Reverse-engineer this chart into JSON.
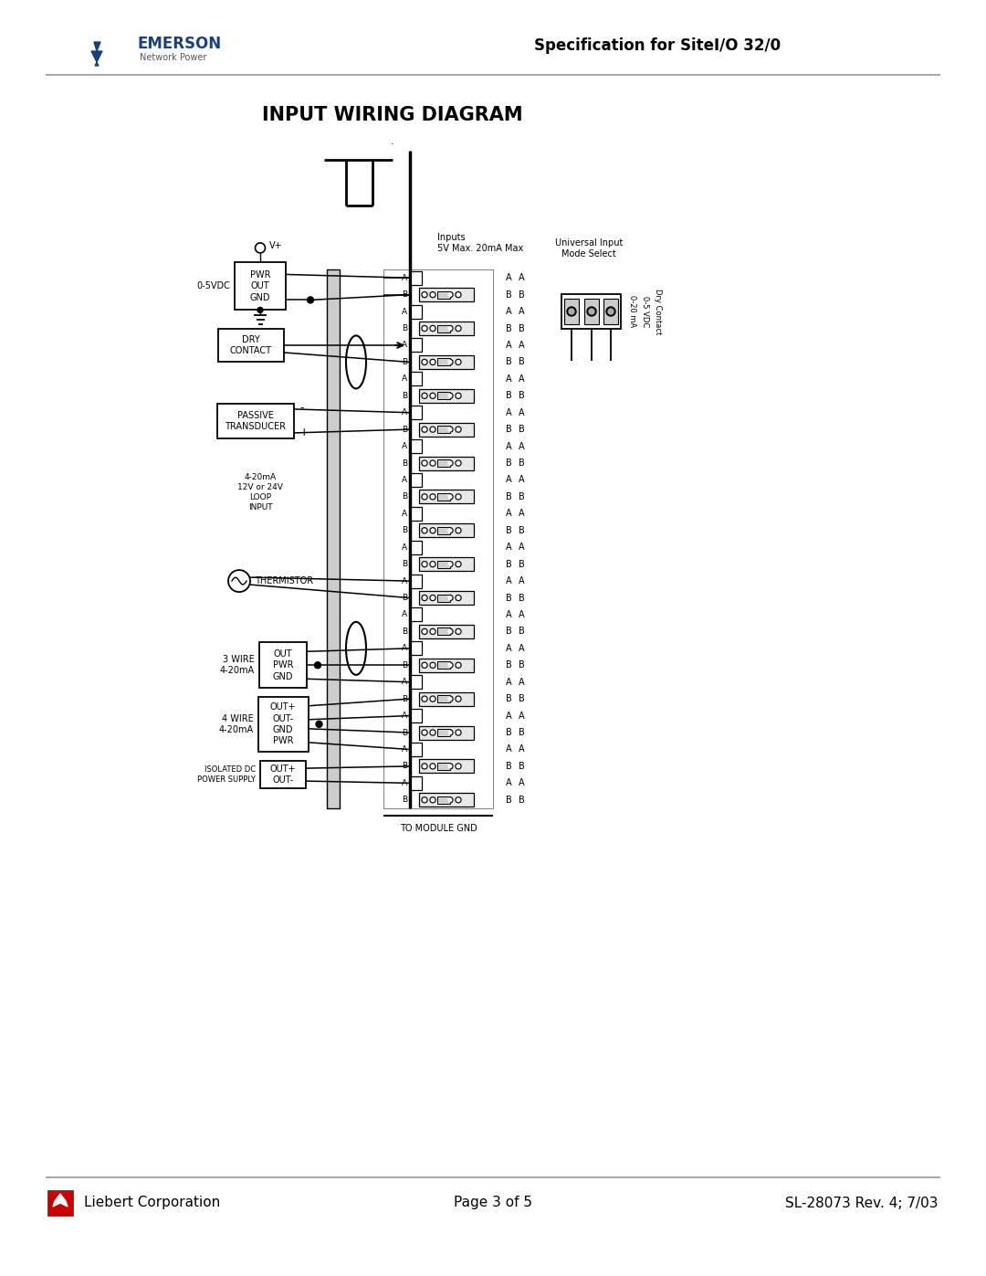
{
  "page_title": "INPUT WIRING DIAGRAM",
  "header_spec": "Specification for SiteI/O 32/0",
  "footer_left": "Liebert Corporation",
  "footer_center": "Page 3 of 5",
  "footer_right": "SL-28073 Rev. 4; 7/03",
  "bg_color": "#ffffff",
  "emerson_blue": "#1a4080",
  "liebert_red": "#cc0000",
  "inputs_label": "Inputs\n5V Max. 20mA Max",
  "universal_label": "Universal Input\nMode Select",
  "label_0_5vdc": "0-5VDC",
  "label_pwr_out_gnd": "PWR\nOUT\nGND",
  "label_vplus": "V+",
  "label_dry_contact": "DRY\nCONTACT",
  "label_passive": "PASSIVE\nTRANSDUCER",
  "label_loop": "4-20mA\n12V or 24V\nLOOP\nINPUT",
  "label_thermistor": "THERMISTOR",
  "label_3wire": "3 WIRE\n4-20mA",
  "label_3wire_pins": "OUT\nPWR\nGND",
  "label_4wire": "4 WIRE\n4-20mA",
  "label_4wire_pins": "OUT+\nOUT-\nGND\nPWR",
  "label_iso_dc": "ISOLATED DC\nPOWER SUPPLY",
  "label_iso_pins": "OUT+\nOUT-",
  "label_to_module_gnd": "TO MODULE GND",
  "ab_labels": [
    "A",
    "B",
    "A",
    "B",
    "A",
    "B",
    "A",
    "B",
    "A",
    "B",
    "A",
    "B",
    "A",
    "B",
    "A",
    "B",
    "A",
    "B",
    "A",
    "B",
    "A",
    "B",
    "A",
    "B",
    "A",
    "B",
    "A",
    "B",
    "A",
    "B",
    "A",
    "B"
  ],
  "mode_labels": [
    "0-20 mA",
    "0-5 VDC",
    "Dry Contact"
  ],
  "dot": "."
}
